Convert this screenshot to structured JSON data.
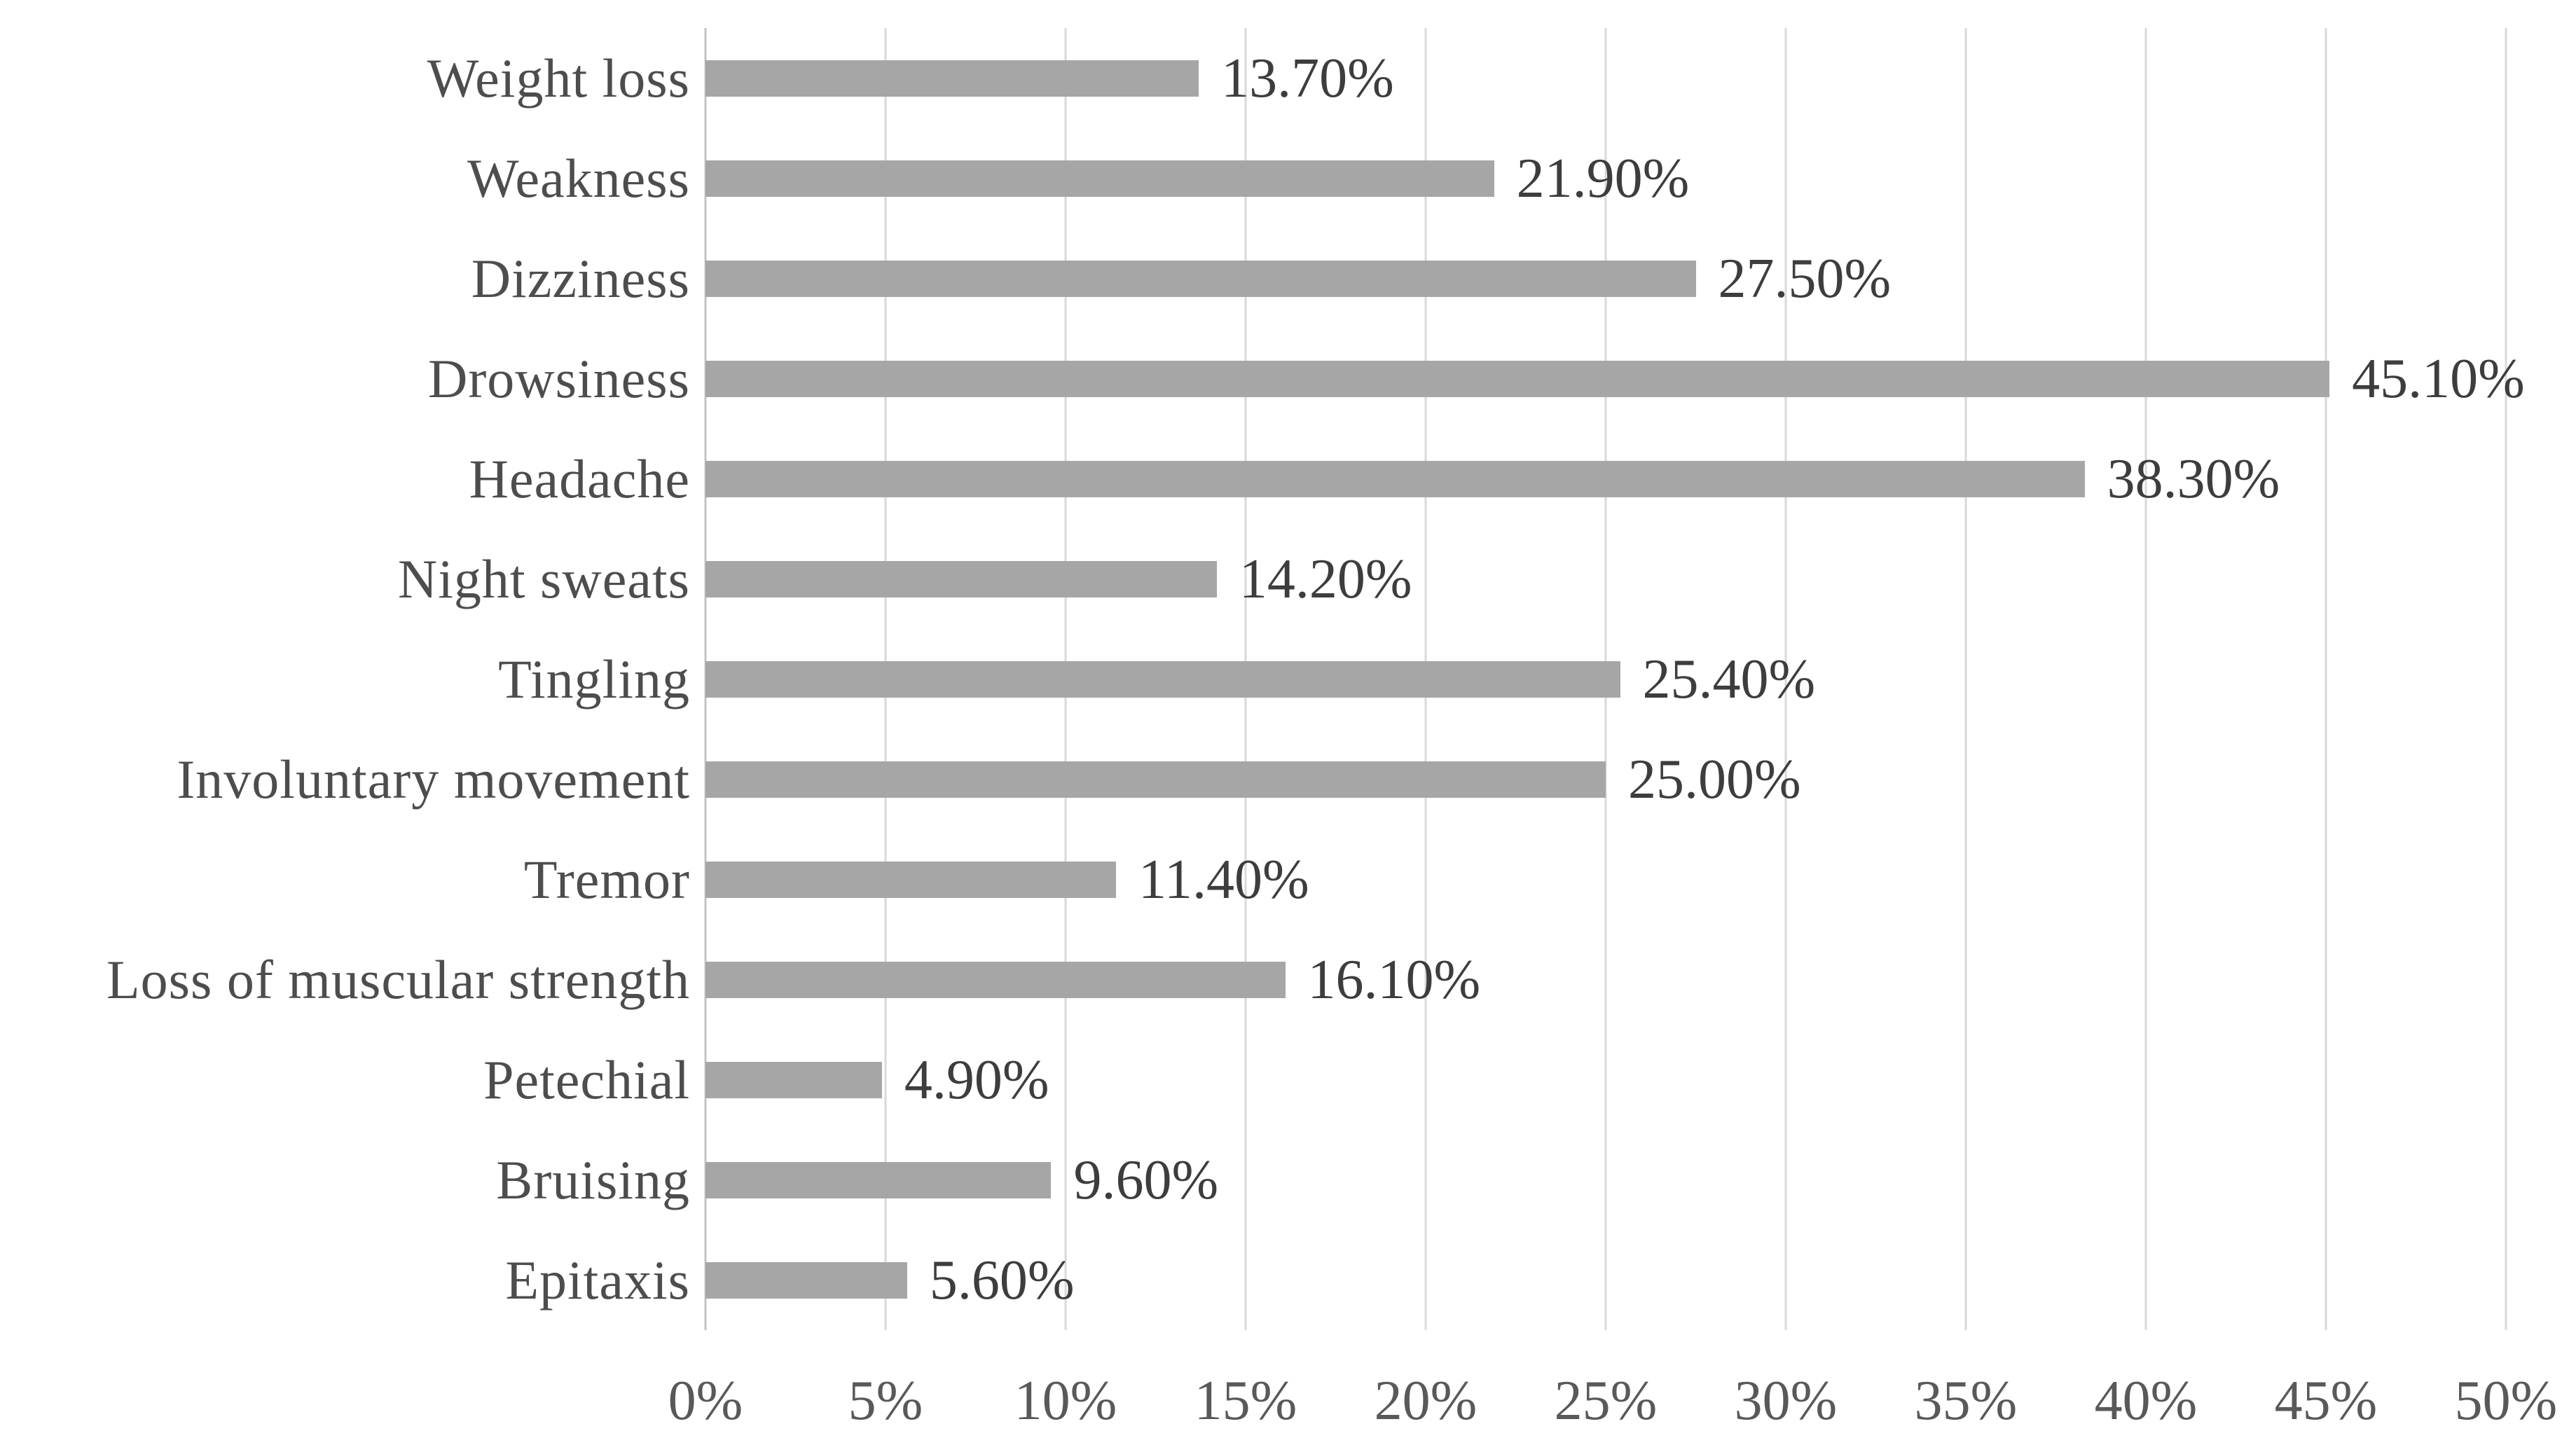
{
  "chart_data": {
    "type": "bar",
    "orientation": "horizontal",
    "title": "",
    "xlabel": "",
    "ylabel": "",
    "categories": [
      "Weight loss",
      "Weakness",
      "Dizziness",
      "Drowsiness",
      "Headache",
      "Night sweats",
      "Tingling",
      "Involuntary movement",
      "Tremor",
      "Loss of muscular strength",
      "Petechial",
      "Bruising",
      "Epitaxis"
    ],
    "values": [
      13.7,
      21.9,
      27.5,
      45.1,
      38.3,
      14.2,
      25.4,
      25.0,
      11.4,
      16.1,
      4.9,
      9.6,
      5.6
    ],
    "labels": [
      "13.70%",
      "21.90%",
      "27.50%",
      "45.10%",
      "38.30%",
      "14.20%",
      "25.40%",
      "25.00%",
      "11.40%",
      "16.10%",
      "4.90%",
      "9.60%",
      "5.60%"
    ],
    "xlim": [
      0,
      50
    ],
    "x_tick_step": 5,
    "x_ticks": [
      "0%",
      "5%",
      "10%",
      "15%",
      "20%",
      "25%",
      "30%",
      "35%",
      "40%",
      "45%",
      "50%"
    ],
    "grid": true,
    "legend": false,
    "bar_color": "#a6a6a6",
    "gridline_color": "#d9d9d9",
    "axis_line_color": "#c3c3c3",
    "value_label_color": "#3d3d3d",
    "category_label_color": "#4d4d4d",
    "tick_label_color": "#595959",
    "background_color": "#ffffff"
  }
}
